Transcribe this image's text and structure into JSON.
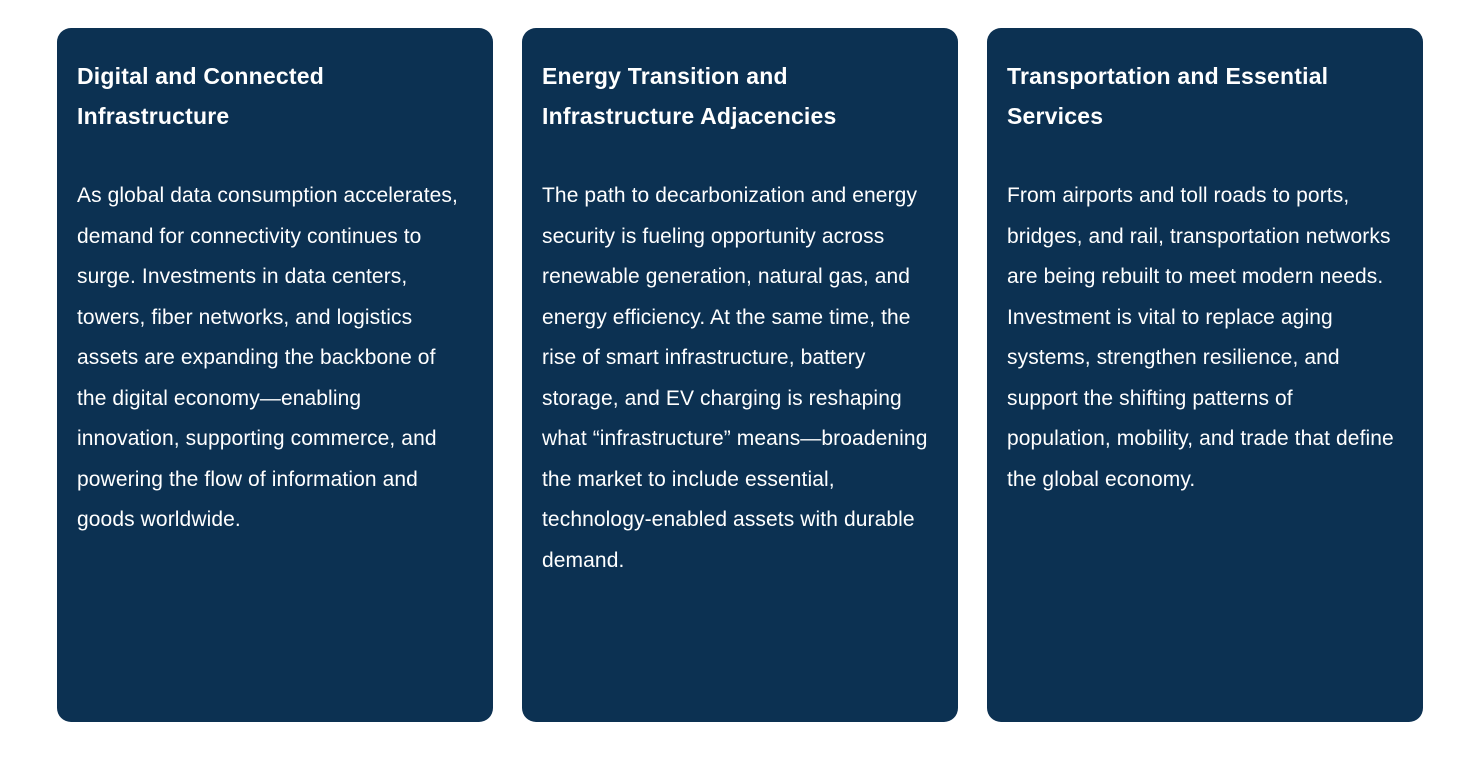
{
  "page": {
    "background_color": "#ffffff"
  },
  "card_style": {
    "background_color": "#0c3152",
    "text_color": "#ffffff"
  },
  "cards": [
    {
      "title": "Digital and Connected Infrastructure",
      "body": "As global data consumption accelerates, demand for connectivity continues to surge. Investments in data centers, towers, fiber networks, and logistics assets are expanding the backbone of the digital economy—enabling innovation, supporting commerce, and powering the flow of information and goods worldwide."
    },
    {
      "title": "Energy Transition and Infrastructure Adjacencies",
      "body": "The path to decarbonization and energy security is fueling opportunity across renewable generation, natural gas, and energy efficiency. At the same time, the rise of smart infrastructure, battery storage, and EV charging is reshaping what “infrastructure” means—broadening the market to include essential, technology-enabled assets with durable demand."
    },
    {
      "title": "Transportation and Essential Services",
      "body": "From airports and toll roads to ports, bridges, and rail, transportation networks are being rebuilt to meet modern needs. Investment is vital to replace aging systems, strengthen resilience, and support the shifting patterns of population, mobility, and trade that define the global economy."
    }
  ]
}
